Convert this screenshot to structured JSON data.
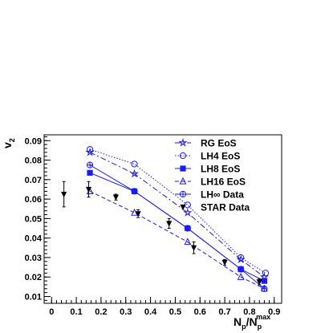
{
  "chart_data": {
    "type": "line",
    "title": "",
    "xlabel_main": "N",
    "xlabel_sub": "p",
    "xlabel_sep": "/N",
    "xlabel_sub2": "p",
    "xlabel_sup2": "max",
    "ylabel_main": "v",
    "ylabel_sub": "2",
    "xlim": [
      -0.03,
      0.93
    ],
    "ylim": [
      0.0065,
      0.093
    ],
    "x_ticks": [
      0,
      0.1,
      0.2,
      0.3,
      0.4,
      0.5,
      0.6,
      0.7,
      0.8,
      0.9
    ],
    "x_tick_labels": [
      "0",
      "0.1",
      "0.2",
      "0.3",
      "0.4",
      "0.5",
      "0.6",
      "0.7",
      "0.8",
      "0.9"
    ],
    "y_ticks": [
      0.01,
      0.02,
      0.03,
      0.04,
      0.05,
      0.06,
      0.07,
      0.08,
      0.09
    ],
    "y_tick_labels": [
      "0.01",
      "0.02",
      "0.03",
      "0.04",
      "0.05",
      "0.06",
      "0.07",
      "0.08",
      "0.09"
    ],
    "legend_position": "top-right",
    "series": [
      {
        "name": "RG EoS",
        "marker": "star",
        "dash": "dashdot",
        "x": [
          0.155,
          0.335,
          0.55,
          0.765,
          0.86
        ],
        "y": [
          0.084,
          0.073,
          0.053,
          0.029,
          0.02
        ]
      },
      {
        "name": "LH4 EoS",
        "marker": "circle-open",
        "dash": "dot",
        "x": [
          0.155,
          0.335,
          0.55,
          0.765,
          0.865
        ],
        "y": [
          0.0855,
          0.078,
          0.057,
          0.03,
          0.022
        ]
      },
      {
        "name": "LH8 EoS",
        "marker": "square",
        "dash": "solid",
        "x": [
          0.155,
          0.335,
          0.55,
          0.765,
          0.86
        ],
        "y": [
          0.0735,
          0.064,
          0.045,
          0.024,
          0.018
        ]
      },
      {
        "name": "LH16 EoS",
        "marker": "triangle-open",
        "dash": "dash",
        "x": [
          0.155,
          0.335,
          0.55,
          0.765,
          0.86
        ],
        "y": [
          0.064,
          0.053,
          0.038,
          0.02,
          0.014
        ]
      },
      {
        "name": "LH∞ Data",
        "marker": "crossed-circle",
        "dash": "solid",
        "x": [
          0.155,
          0.335,
          0.55,
          0.765,
          0.86
        ],
        "y": [
          0.0775,
          0.064,
          0.045,
          0.024,
          0.014
        ]
      }
    ],
    "data_series": {
      "name": "STAR Data",
      "marker": "triangle-down",
      "x": [
        0.05,
        0.15,
        0.26,
        0.35,
        0.475,
        0.575,
        0.7,
        0.84
      ],
      "y": [
        0.0625,
        0.065,
        0.061,
        0.0525,
        0.0475,
        0.035,
        0.0275,
        0.0175
      ],
      "err": [
        0.0065,
        0.004,
        0.0015,
        0.002,
        0.0025,
        0.003,
        0.0015,
        0.0015
      ]
    }
  }
}
